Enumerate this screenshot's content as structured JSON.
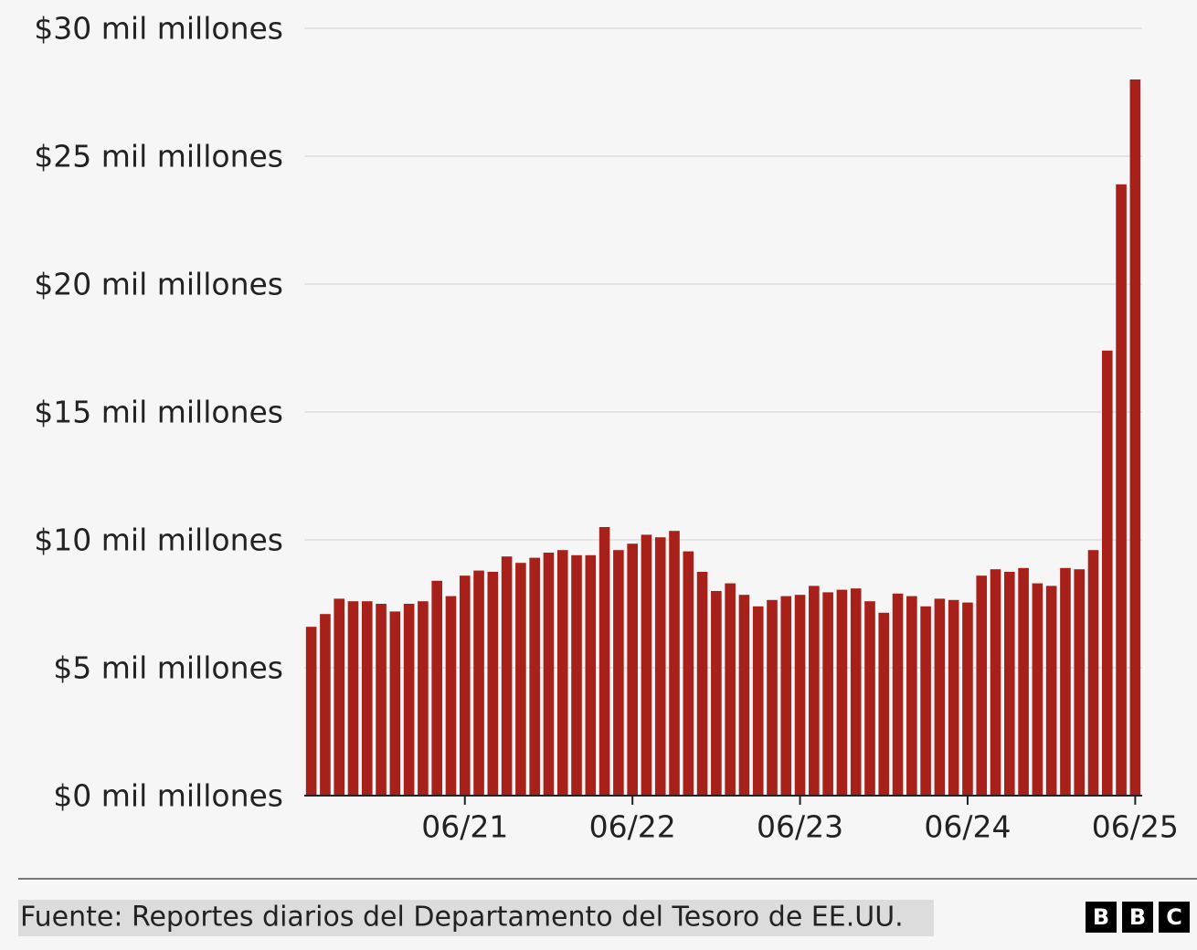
{
  "chart_data": {
    "type": "bar",
    "categories": [
      null,
      null,
      null,
      null,
      null,
      null,
      null,
      null,
      null,
      null,
      null,
      "06/21",
      null,
      null,
      null,
      null,
      null,
      null,
      null,
      null,
      null,
      null,
      null,
      "06/22",
      null,
      null,
      null,
      null,
      null,
      null,
      null,
      null,
      null,
      null,
      null,
      "06/23",
      null,
      null,
      null,
      null,
      null,
      null,
      null,
      null,
      null,
      null,
      null,
      "06/24",
      null,
      null,
      null,
      null,
      null,
      null,
      null,
      null,
      null,
      null,
      null,
      "06/25"
    ],
    "values": [
      6.6,
      7.1,
      7.7,
      7.6,
      7.6,
      7.5,
      7.2,
      7.5,
      7.6,
      8.4,
      7.8,
      8.6,
      8.8,
      8.75,
      9.35,
      9.1,
      9.3,
      9.5,
      9.6,
      9.4,
      9.4,
      10.5,
      9.6,
      9.85,
      10.2,
      10.1,
      10.35,
      9.55,
      8.75,
      8.0,
      8.3,
      7.85,
      7.4,
      7.65,
      7.8,
      7.85,
      8.2,
      7.95,
      8.05,
      8.1,
      7.6,
      7.15,
      7.9,
      7.8,
      7.4,
      7.7,
      7.65,
      7.55,
      8.6,
      8.85,
      8.75,
      8.9,
      8.3,
      8.2,
      8.9,
      8.85,
      9.6,
      17.4,
      23.9,
      28.0
    ],
    "color": "#a8201a",
    "ylim": [
      0,
      30
    ],
    "yticks": [
      {
        "value": 0,
        "label": "$0 mil millones"
      },
      {
        "value": 5,
        "label": "$5 mil millones"
      },
      {
        "value": 10,
        "label": "$10 mil millones"
      },
      {
        "value": 15,
        "label": "$15 mil millones"
      },
      {
        "value": 20,
        "label": "$20 mil millones"
      },
      {
        "value": 25,
        "label": "$25 mil millones"
      },
      {
        "value": 30,
        "label": "$30 mil millones"
      }
    ],
    "grid": true,
    "source": "Fuente: Reportes diarios del Departamento del Tesoro de EE.UU.",
    "logo": [
      "B",
      "B",
      "C"
    ]
  }
}
